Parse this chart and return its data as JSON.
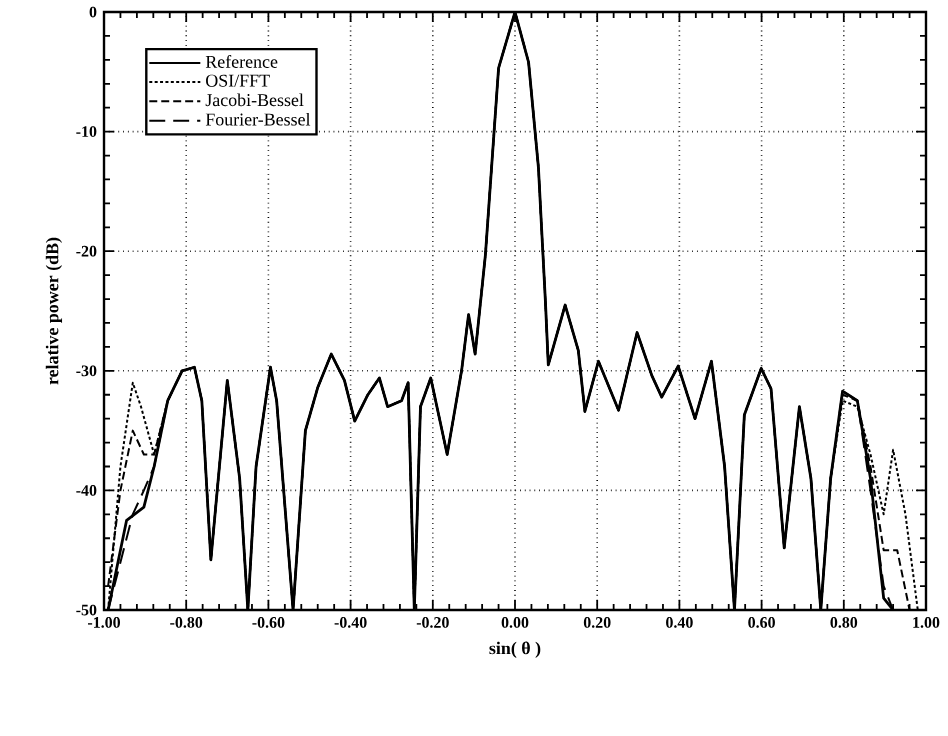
{
  "chart_data": {
    "type": "line",
    "xlabel": "sin( θ )",
    "ylabel": "relative power (dB)",
    "xlim": [
      -1.0,
      1.0
    ],
    "ylim": [
      -50,
      0
    ],
    "xticks": [
      {
        "value": -1.0,
        "label": "-1.00"
      },
      {
        "value": -0.8,
        "label": "-0.80"
      },
      {
        "value": -0.6,
        "label": "-0.60"
      },
      {
        "value": -0.4,
        "label": "-0.40"
      },
      {
        "value": -0.2,
        "label": "-0.20"
      },
      {
        "value": 0.0,
        "label": "0.00"
      },
      {
        "value": 0.2,
        "label": "0.20"
      },
      {
        "value": 0.4,
        "label": "0.40"
      },
      {
        "value": 0.6,
        "label": "0.60"
      },
      {
        "value": 0.8,
        "label": "0.80"
      },
      {
        "value": 1.0,
        "label": "1.00"
      }
    ],
    "yticks": [
      0,
      -10,
      -20,
      -30,
      -40,
      -50
    ],
    "grid": true,
    "legend": "top left",
    "marker": "none",
    "series": [
      {
        "name": "Reference",
        "color": "#000000",
        "line_style": "solid",
        "x": [
          -0.99,
          -0.945,
          -0.903,
          -0.878,
          -0.845,
          -0.81,
          -0.78,
          -0.762,
          -0.74,
          -0.7,
          -0.67,
          -0.65,
          -0.63,
          -0.595,
          -0.58,
          -0.54,
          -0.51,
          -0.48,
          -0.447,
          -0.415,
          -0.39,
          -0.358,
          -0.33,
          -0.31,
          -0.276,
          -0.26,
          -0.245,
          -0.23,
          -0.205,
          -0.165,
          -0.13,
          -0.113,
          -0.097,
          -0.072,
          -0.04,
          0.0,
          0.033,
          0.057,
          0.074,
          0.081,
          0.122,
          0.154,
          0.17,
          0.203,
          0.252,
          0.297,
          0.333,
          0.357,
          0.397,
          0.438,
          0.478,
          0.51,
          0.534,
          0.558,
          0.599,
          0.623,
          0.655,
          0.692,
          0.72,
          0.744,
          0.768,
          0.797,
          0.833,
          0.865,
          0.897,
          0.92
        ],
        "values": [
          -50,
          -42.5,
          -41.4,
          -38,
          -32.5,
          -30,
          -29.7,
          -32.5,
          -45.8,
          -30.8,
          -39,
          -50,
          -38,
          -29.7,
          -32.5,
          -50,
          -35,
          -31.4,
          -28.6,
          -30.8,
          -34.2,
          -32,
          -30.6,
          -33,
          -32.5,
          -31,
          -50,
          -33,
          -30.6,
          -37,
          -30,
          -25.3,
          -28.6,
          -20.3,
          -4.7,
          0,
          -4.2,
          -13,
          -24.2,
          -29.5,
          -24.5,
          -28.3,
          -33.4,
          -29.2,
          -33.3,
          -26.8,
          -30.4,
          -32.2,
          -29.6,
          -34,
          -29.2,
          -38,
          -50,
          -33.7,
          -29.8,
          -31.5,
          -44.8,
          -33,
          -39,
          -50,
          -39,
          -31.7,
          -32.5,
          -39,
          -49,
          -50
        ]
      },
      {
        "name": "OSI/FFT",
        "color": "#000000",
        "line_style": "dotted",
        "x": [
          -0.99,
          -0.96,
          -0.93,
          -0.91,
          -0.878,
          -0.845,
          -0.81,
          -0.78,
          -0.762,
          -0.74,
          -0.7,
          -0.67,
          -0.65,
          -0.63,
          -0.595,
          -0.58,
          -0.54,
          -0.51,
          -0.48,
          -0.447,
          -0.415,
          -0.39,
          -0.358,
          -0.33,
          -0.31,
          -0.276,
          -0.26,
          -0.245,
          -0.23,
          -0.205,
          -0.165,
          -0.13,
          -0.113,
          -0.097,
          -0.072,
          -0.04,
          0.0,
          0.033,
          0.057,
          0.074,
          0.081,
          0.122,
          0.154,
          0.17,
          0.203,
          0.252,
          0.297,
          0.333,
          0.357,
          0.397,
          0.438,
          0.478,
          0.51,
          0.534,
          0.558,
          0.599,
          0.623,
          0.655,
          0.692,
          0.72,
          0.744,
          0.768,
          0.797,
          0.833,
          0.865,
          0.897,
          0.92,
          0.95,
          0.98
        ],
        "values": [
          -50,
          -38,
          -31,
          -33,
          -37,
          -32.5,
          -30,
          -29.7,
          -32.5,
          -45.8,
          -30.8,
          -39,
          -50,
          -38,
          -29.7,
          -32.5,
          -50,
          -35,
          -31.4,
          -28.6,
          -30.8,
          -34.2,
          -32,
          -30.6,
          -33,
          -32.5,
          -31,
          -50,
          -33,
          -30.6,
          -37,
          -30,
          -25.3,
          -28.6,
          -20.3,
          -4.7,
          0,
          -4.2,
          -13,
          -24.2,
          -29.5,
          -24.5,
          -28.3,
          -33.4,
          -29.2,
          -33.3,
          -26.8,
          -30.4,
          -32.2,
          -29.6,
          -34,
          -29.2,
          -38,
          -50,
          -33.7,
          -29.8,
          -31.5,
          -44.8,
          -33,
          -39,
          -50,
          -39,
          -32.5,
          -33,
          -37,
          -42,
          -36.6,
          -42,
          -50
        ]
      },
      {
        "name": "Jacobi-Bessel",
        "color": "#000000",
        "line_style": "dashed",
        "x": [
          -0.99,
          -0.96,
          -0.93,
          -0.903,
          -0.878,
          -0.845,
          -0.81,
          -0.78,
          -0.762,
          -0.74,
          -0.7,
          -0.67,
          -0.65,
          -0.63,
          -0.595,
          -0.58,
          -0.54,
          -0.51,
          -0.48,
          -0.447,
          -0.415,
          -0.39,
          -0.358,
          -0.33,
          -0.31,
          -0.276,
          -0.26,
          -0.245,
          -0.23,
          -0.205,
          -0.165,
          -0.13,
          -0.113,
          -0.097,
          -0.072,
          -0.04,
          0.0,
          0.033,
          0.057,
          0.074,
          0.081,
          0.122,
          0.154,
          0.17,
          0.203,
          0.252,
          0.297,
          0.333,
          0.357,
          0.397,
          0.438,
          0.478,
          0.51,
          0.534,
          0.558,
          0.599,
          0.623,
          0.655,
          0.692,
          0.72,
          0.744,
          0.768,
          0.797,
          0.833,
          0.865,
          0.897,
          0.93,
          0.96
        ],
        "values": [
          -48,
          -40,
          -35,
          -37,
          -37,
          -32.5,
          -30,
          -29.7,
          -32.5,
          -45.8,
          -30.8,
          -39,
          -50,
          -38,
          -29.7,
          -32.5,
          -50,
          -35,
          -31.4,
          -28.6,
          -30.8,
          -34.2,
          -32,
          -30.6,
          -33,
          -32.5,
          -31,
          -50,
          -33,
          -30.6,
          -37,
          -30,
          -25.3,
          -28.6,
          -20.3,
          -4.7,
          0,
          -4.2,
          -13,
          -24.2,
          -29.5,
          -24.5,
          -28.3,
          -33.4,
          -29.2,
          -33.3,
          -26.8,
          -30.4,
          -32.2,
          -29.6,
          -34,
          -29.2,
          -38,
          -50,
          -33.7,
          -29.8,
          -31.5,
          -44.8,
          -33,
          -39,
          -50,
          -39,
          -32,
          -32.5,
          -38,
          -45,
          -45,
          -50
        ]
      },
      {
        "name": "Fourier-Bessel",
        "color": "#000000",
        "line_style": "dashed",
        "x": [
          -0.99,
          -0.96,
          -0.93,
          -0.903,
          -0.878,
          -0.845,
          -0.81,
          -0.78,
          -0.762,
          -0.74,
          -0.7,
          -0.67,
          -0.65,
          -0.63,
          -0.595,
          -0.58,
          -0.54,
          -0.51,
          -0.48,
          -0.447,
          -0.415,
          -0.39,
          -0.358,
          -0.33,
          -0.31,
          -0.276,
          -0.26,
          -0.245,
          -0.23,
          -0.205,
          -0.165,
          -0.13,
          -0.113,
          -0.097,
          -0.072,
          -0.04,
          0.0,
          0.033,
          0.057,
          0.074,
          0.081,
          0.122,
          0.154,
          0.17,
          0.203,
          0.252,
          0.297,
          0.333,
          0.357,
          0.397,
          0.438,
          0.478,
          0.51,
          0.534,
          0.558,
          0.599,
          0.623,
          0.655,
          0.692,
          0.72,
          0.744,
          0.768,
          0.797,
          0.833,
          0.865,
          0.897,
          0.92
        ],
        "values": [
          -50,
          -46,
          -42,
          -40,
          -38,
          -32.5,
          -30,
          -29.7,
          -32.5,
          -45.8,
          -30.8,
          -39,
          -50,
          -38,
          -29.7,
          -32.5,
          -50,
          -35,
          -31.4,
          -28.6,
          -30.8,
          -34.2,
          -32,
          -30.6,
          -33,
          -32.5,
          -31,
          -50,
          -33,
          -30.6,
          -37,
          -30,
          -25.3,
          -28.6,
          -20.3,
          -4.7,
          0,
          -4.2,
          -13,
          -24.2,
          -29.5,
          -24.5,
          -28.3,
          -33.4,
          -29.2,
          -33.3,
          -26.8,
          -30.4,
          -32.2,
          -29.6,
          -34,
          -29.2,
          -38,
          -50,
          -33.7,
          -29.8,
          -31.5,
          -44.8,
          -33,
          -39,
          -50,
          -39,
          -31.7,
          -32.5,
          -40,
          -48,
          -50
        ]
      }
    ]
  }
}
